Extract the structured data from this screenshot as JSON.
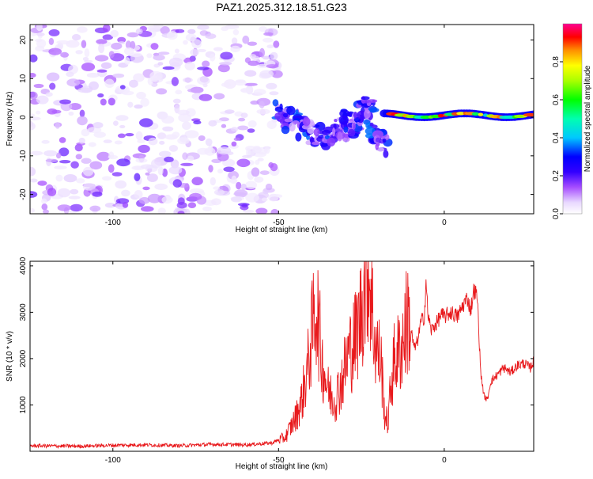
{
  "figure_title": "PAZ1.2025.312.18.51.G23",
  "chart_data": [
    {
      "type": "heatmap",
      "title": "PAZ1.2025.312.18.51.G23",
      "xlabel": "Height of straight line (km)",
      "ylabel": "Frequency (Hz)",
      "xlim": [
        -125,
        27
      ],
      "ylim": [
        -25,
        24
      ],
      "xticks": [
        -100,
        -50,
        0
      ],
      "yticks": [
        -20,
        -10,
        0,
        10,
        20
      ],
      "colorbar": {
        "label": "Normalized spectral amplitude",
        "range": [
          0.0,
          1.0
        ],
        "ticks": [
          0.0,
          0.2,
          0.4,
          0.6,
          0.8
        ],
        "tick_labels": [
          "0.0",
          "0.2",
          "0.4",
          "0.6",
          "0.8"
        ],
        "colors": [
          "#ffffff",
          "#b88ef0",
          "#7a00ff",
          "#0000ff",
          "#00e0ff",
          "#00ff00",
          "#ffff00",
          "#ff8000",
          "#ff0000",
          "#ff00a0"
        ]
      },
      "description_regions": [
        {
          "x_range": [
            -125,
            -50
          ],
          "freq_range": [
            -25,
            24
          ],
          "amplitude": 0.05,
          "pattern": "noise"
        },
        {
          "x_range": [
            -50,
            -18
          ],
          "freq_center": -2,
          "amplitude": 0.25,
          "pattern": "scattered"
        },
        {
          "x_range": [
            -18,
            27
          ],
          "freq_center": 0.5,
          "amplitude": 0.95,
          "pattern": "band"
        }
      ]
    },
    {
      "type": "line",
      "xlabel": "Height of straight line (km)",
      "ylabel": "SNR (10 * v/v)",
      "xlim": [
        -125,
        27
      ],
      "ylim": [
        0,
        4100
      ],
      "xticks": [
        -100,
        -50,
        0
      ],
      "yticks": [
        1000,
        2000,
        3000,
        4000
      ],
      "series": [
        {
          "name": "SNR",
          "color": "#e8191c",
          "x": [
            -125,
            -110,
            -100,
            -90,
            -80,
            -70,
            -60,
            -52,
            -48,
            -45,
            -43,
            -41,
            -40,
            -39,
            -38.5,
            -37,
            -35,
            -33,
            -31,
            -29,
            -27,
            -25,
            -24,
            -23,
            -22,
            -21,
            -19,
            -18,
            -17,
            -16,
            -15,
            -13,
            -12,
            -11,
            -10,
            -9,
            -8,
            -7,
            -6,
            -5.5,
            -5,
            -4,
            -3,
            -2,
            -1,
            0,
            2,
            4,
            6,
            7,
            8,
            9,
            10,
            11,
            12,
            13,
            14,
            16,
            18,
            20,
            22,
            24,
            26,
            27
          ],
          "values": [
            120,
            110,
            130,
            140,
            120,
            150,
            140,
            180,
            300,
            700,
            1100,
            1900,
            2500,
            3000,
            3200,
            2000,
            1300,
            1100,
            1500,
            2100,
            2400,
            3000,
            3600,
            4050,
            3300,
            2400,
            1900,
            800,
            600,
            1500,
            2000,
            2200,
            2600,
            2900,
            2600,
            2200,
            2400,
            2800,
            2900,
            3700,
            3000,
            2600,
            2700,
            2800,
            2950,
            2900,
            3000,
            2900,
            3200,
            3300,
            3050,
            3500,
            3300,
            1700,
            1200,
            1100,
            1500,
            1650,
            1800,
            1700,
            1850,
            1900,
            1800,
            1950
          ]
        }
      ]
    }
  ]
}
